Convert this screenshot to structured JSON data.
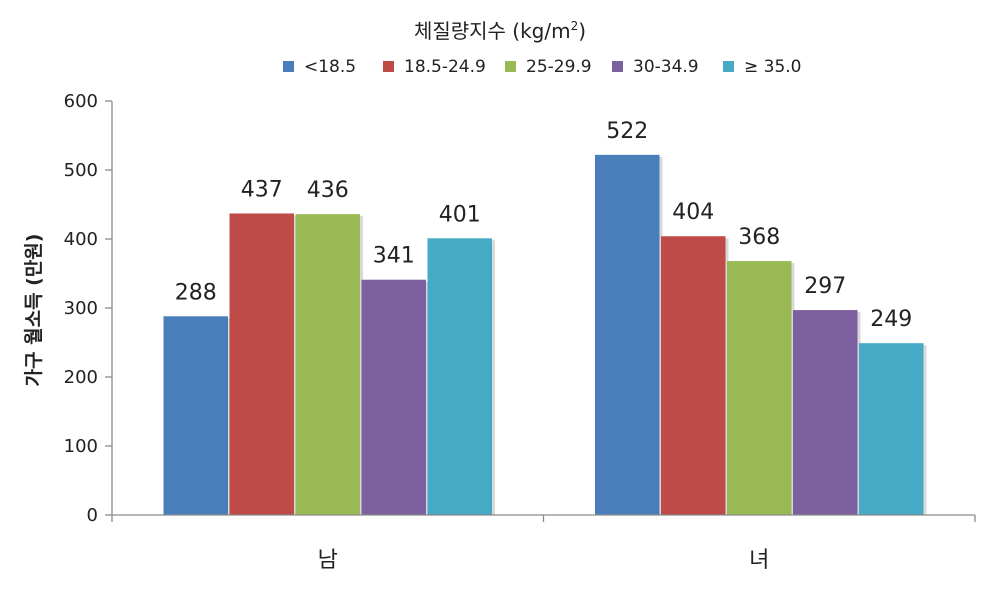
{
  "chart_data": {
    "type": "bar",
    "legend_title": "체질량지수 (kg/m",
    "legend_title_sup": "2",
    "legend_title_end": ")",
    "legend_placement": "top-center",
    "ylabel": "가구 월소득 (만원)",
    "xlabel": "",
    "ylim": [
      0,
      600
    ],
    "yticks": [
      "0",
      "100",
      "200",
      "300",
      "400",
      "500",
      "600"
    ],
    "grid": false,
    "categories": [
      "남",
      "녀"
    ],
    "series": [
      {
        "name": "<18.5",
        "color": "#4a7ebb",
        "values": [
          288,
          522
        ]
      },
      {
        "name": "18.5-24.9",
        "color": "#be4b48",
        "values": [
          437,
          404
        ]
      },
      {
        "name": "25-29.9",
        "color": "#98b954",
        "values": [
          436,
          368
        ]
      },
      {
        "name": "30-34.9",
        "color": "#7d60a0",
        "values": [
          341,
          297
        ]
      },
      {
        "name": "≥  35.0",
        "color": "#46aac5",
        "values": [
          401,
          249
        ]
      }
    ],
    "value_labels": [
      [
        "288",
        "522"
      ],
      [
        "437",
        "404"
      ],
      [
        "436",
        "368"
      ],
      [
        "341",
        "297"
      ],
      [
        "401",
        "249"
      ]
    ]
  }
}
